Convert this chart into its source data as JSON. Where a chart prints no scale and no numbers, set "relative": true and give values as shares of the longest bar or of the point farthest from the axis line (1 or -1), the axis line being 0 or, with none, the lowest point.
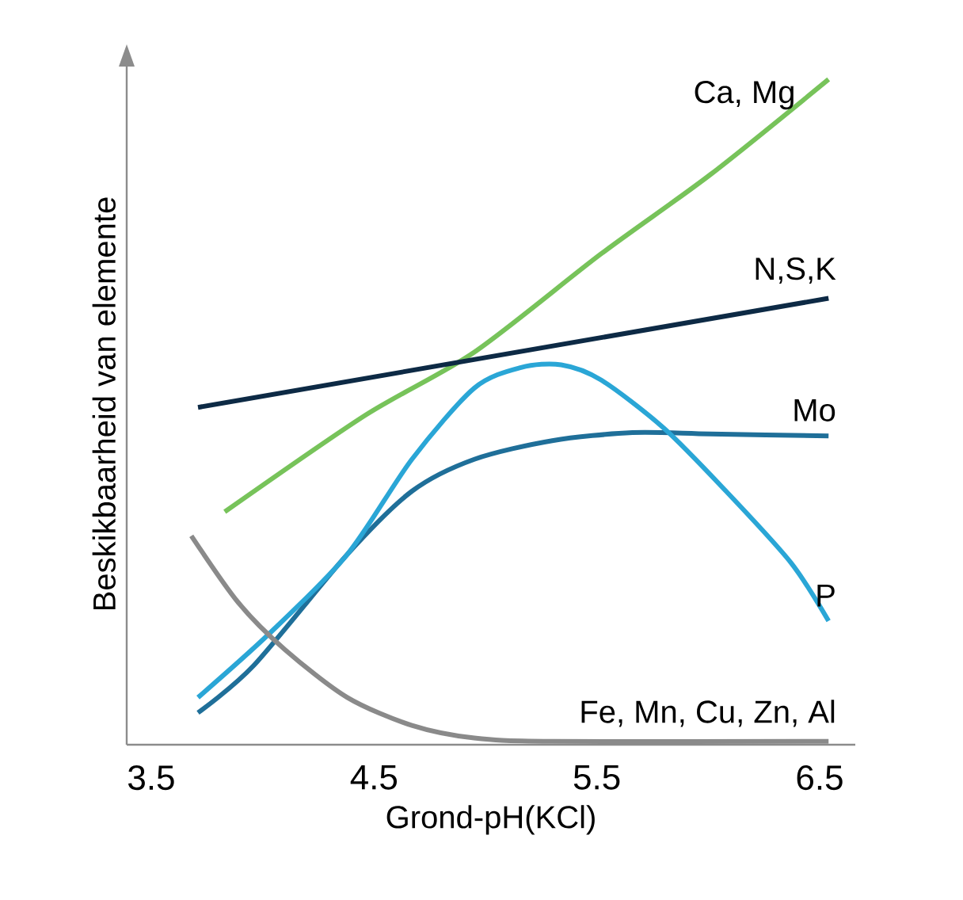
{
  "chart_data": {
    "type": "line",
    "relative": true,
    "xlabel": "Grond-pH(KCl)",
    "ylabel": "Beskikbaarheid van elemente",
    "xlim": [
      3.39,
      6.66
    ],
    "xticks": [
      3.5,
      4.5,
      5.5,
      6.5
    ],
    "tick_labels": "x",
    "legend": false,
    "series": [
      {
        "name": "Ca, Mg",
        "color": "#77c35a",
        "x": [
          3.83,
          4.46,
          4.95,
          5.52,
          6.01,
          6.54
        ],
        "values": [
          0.35,
          0.495,
          0.59,
          0.738,
          0.857,
          1.0
        ]
      },
      {
        "name": "N,S,K",
        "color": "#0d2a45",
        "x": [
          3.71,
          6.54
        ],
        "values": [
          0.507,
          0.671
        ]
      },
      {
        "name": "Mo",
        "color": "#1f6f99",
        "x": [
          3.71,
          3.96,
          4.38,
          4.67,
          4.95,
          5.3,
          5.66,
          6.01,
          6.54
        ],
        "values": [
          0.048,
          0.119,
          0.286,
          0.381,
          0.429,
          0.457,
          0.469,
          0.467,
          0.464
        ]
      },
      {
        "name": "P",
        "color": "#2aa6d6",
        "x": [
          3.71,
          4.03,
          4.38,
          4.67,
          4.95,
          5.16,
          5.34,
          5.52,
          5.8,
          6.08,
          6.37,
          6.54
        ],
        "values": [
          0.071,
          0.167,
          0.286,
          0.429,
          0.536,
          0.567,
          0.571,
          0.548,
          0.476,
          0.381,
          0.274,
          0.186
        ]
      },
      {
        "name": "Fe, Mn, Cu, Zn, Al",
        "color": "#8a8a8a",
        "x": [
          3.68,
          3.89,
          4.1,
          4.38,
          4.67,
          4.95,
          5.3,
          6.54
        ],
        "values": [
          0.314,
          0.214,
          0.143,
          0.071,
          0.029,
          0.01,
          0.005,
          0.005
        ]
      }
    ]
  }
}
